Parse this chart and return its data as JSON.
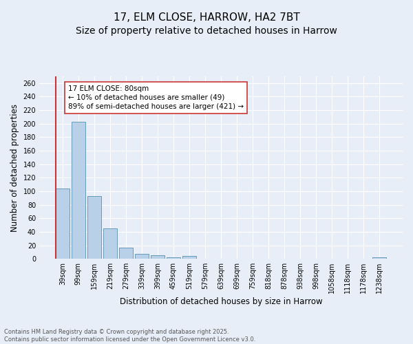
{
  "title_line1": "17, ELM CLOSE, HARROW, HA2 7BT",
  "title_line2": "Size of property relative to detached houses in Harrow",
  "xlabel": "Distribution of detached houses by size in Harrow",
  "ylabel": "Number of detached properties",
  "categories": [
    "39sqm",
    "99sqm",
    "159sqm",
    "219sqm",
    "279sqm",
    "339sqm",
    "399sqm",
    "459sqm",
    "519sqm",
    "579sqm",
    "639sqm",
    "699sqm",
    "759sqm",
    "818sqm",
    "878sqm",
    "938sqm",
    "998sqm",
    "1058sqm",
    "1118sqm",
    "1178sqm",
    "1238sqm"
  ],
  "values": [
    104,
    203,
    93,
    45,
    17,
    7,
    5,
    2,
    4,
    0,
    0,
    0,
    0,
    0,
    0,
    0,
    0,
    0,
    0,
    0,
    2
  ],
  "bar_color": "#b8d0e8",
  "bar_edge_color": "#6699bb",
  "highlight_color": "#cc3333",
  "annotation_text": "17 ELM CLOSE: 80sqm\n← 10% of detached houses are smaller (49)\n89% of semi-detached houses are larger (421) →",
  "annotation_box_color": "#ffffff",
  "annotation_box_edge_color": "#cc3333",
  "ylim": [
    0,
    270
  ],
  "yticks": [
    0,
    20,
    40,
    60,
    80,
    100,
    120,
    140,
    160,
    180,
    200,
    220,
    240,
    260
  ],
  "background_color": "#e8eef8",
  "grid_color": "#ffffff",
  "footer_text": "Contains HM Land Registry data © Crown copyright and database right 2025.\nContains public sector information licensed under the Open Government Licence v3.0.",
  "title_fontsize": 11,
  "subtitle_fontsize": 10,
  "axis_label_fontsize": 8.5,
  "tick_fontsize": 7,
  "annotation_fontsize": 7.5,
  "footer_fontsize": 6
}
